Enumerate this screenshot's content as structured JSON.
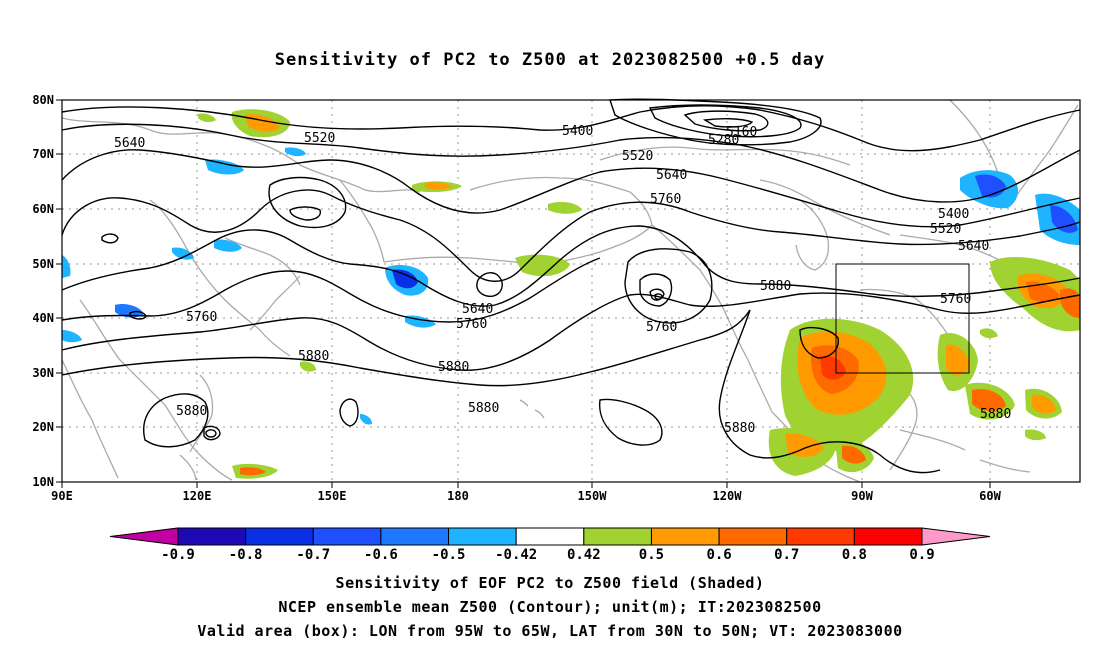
{
  "title": "Sensitivity of PC2 to Z500 at 2023082500 +0.5 day",
  "map": {
    "lon_ticks": [
      "90E",
      "120E",
      "150E",
      "180",
      "150W",
      "120W",
      "90W",
      "60W"
    ],
    "lat_ticks": [
      "80N",
      "70N",
      "60N",
      "50N",
      "40N",
      "30N",
      "20N",
      "10N"
    ],
    "valid_box": {
      "lon_from": "95W",
      "lon_to": "65W",
      "lat_from": "30N",
      "lat_to": "50N"
    }
  },
  "contour_labels": [
    "5640",
    "5520",
    "5400",
    "5280",
    "5160",
    "5520",
    "5640",
    "5760",
    "5400",
    "5520",
    "5640",
    "5760",
    "5760",
    "5640",
    "5760",
    "5760",
    "5880",
    "5880",
    "5880",
    "5880",
    "5880",
    "5880",
    "5880"
  ],
  "colorbar": {
    "tick_labels": [
      "-0.9",
      "-0.8",
      "-0.7",
      "-0.6",
      "-0.5",
      "-0.42",
      "0.42",
      "0.5",
      "0.6",
      "0.7",
      "0.8",
      "0.9"
    ],
    "colors": [
      "#c000a0",
      "#1e0ab4",
      "#0a30e6",
      "#1e50ff",
      "#1e78ff",
      "#1eb4ff",
      "#ffffff",
      "#a0d232",
      "#ff9a00",
      "#ff6a00",
      "#ff3a00",
      "#ff0000",
      "#ff9ac8"
    ]
  },
  "caption": {
    "line1": "Sensitivity of EOF PC2 to Z500 field (Shaded)",
    "line2": "NCEP ensemble mean Z500 (Contour); unit(m); IT:2023082500",
    "line3": "Valid area (box): LON from 95W to 65W, LAT from 30N to 50N; VT: 2023083000"
  }
}
